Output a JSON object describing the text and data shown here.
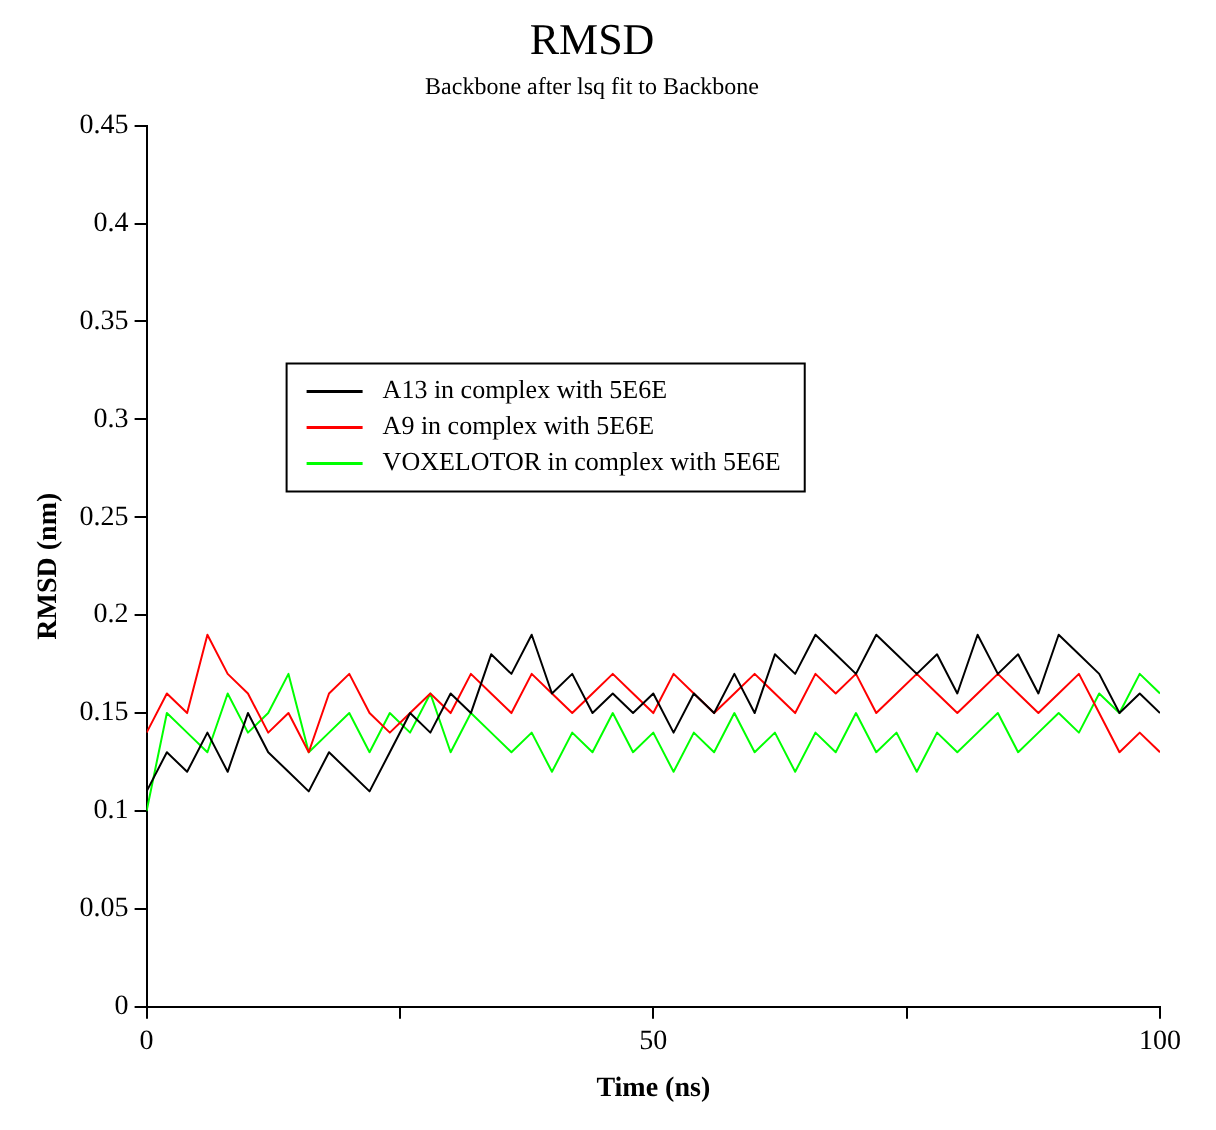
{
  "chart_data": {
    "type": "line",
    "title": "RMSD",
    "subtitle": "Backbone after lsq fit to Backbone",
    "xlabel": "Time (ns)",
    "ylabel": "RMSD (nm)",
    "x": [
      0,
      2,
      4,
      6,
      8,
      10,
      12,
      14,
      16,
      18,
      20,
      22,
      24,
      26,
      28,
      30,
      32,
      34,
      36,
      38,
      40,
      42,
      44,
      46,
      48,
      50,
      52,
      54,
      56,
      58,
      60,
      62,
      64,
      66,
      68,
      70,
      72,
      74,
      76,
      78,
      80,
      82,
      84,
      86,
      88,
      90,
      92,
      94,
      96,
      98,
      100
    ],
    "series": [
      {
        "name": "A13 in complex with 5E6E",
        "color": "#000000",
        "values": [
          0.11,
          0.13,
          0.12,
          0.14,
          0.12,
          0.15,
          0.13,
          0.12,
          0.11,
          0.13,
          0.12,
          0.11,
          0.13,
          0.15,
          0.14,
          0.16,
          0.15,
          0.18,
          0.17,
          0.19,
          0.16,
          0.17,
          0.15,
          0.16,
          0.15,
          0.16,
          0.14,
          0.16,
          0.15,
          0.17,
          0.15,
          0.18,
          0.17,
          0.19,
          0.18,
          0.17,
          0.19,
          0.18,
          0.17,
          0.18,
          0.16,
          0.19,
          0.17,
          0.18,
          0.16,
          0.19,
          0.18,
          0.17,
          0.15,
          0.16,
          0.15
        ]
      },
      {
        "name": "A9 in complex with 5E6E",
        "color": "#ff0000",
        "values": [
          0.14,
          0.16,
          0.15,
          0.19,
          0.17,
          0.16,
          0.14,
          0.15,
          0.13,
          0.16,
          0.17,
          0.15,
          0.14,
          0.15,
          0.16,
          0.15,
          0.17,
          0.16,
          0.15,
          0.17,
          0.16,
          0.15,
          0.16,
          0.17,
          0.16,
          0.15,
          0.17,
          0.16,
          0.15,
          0.16,
          0.17,
          0.16,
          0.15,
          0.17,
          0.16,
          0.17,
          0.15,
          0.16,
          0.17,
          0.16,
          0.15,
          0.16,
          0.17,
          0.16,
          0.15,
          0.16,
          0.17,
          0.15,
          0.13,
          0.14,
          0.13
        ]
      },
      {
        "name": "VOXELOTOR in complex with 5E6E",
        "color": "#00ff00",
        "values": [
          0.1,
          0.15,
          0.14,
          0.13,
          0.16,
          0.14,
          0.15,
          0.17,
          0.13,
          0.14,
          0.15,
          0.13,
          0.15,
          0.14,
          0.16,
          0.13,
          0.15,
          0.14,
          0.13,
          0.14,
          0.12,
          0.14,
          0.13,
          0.15,
          0.13,
          0.14,
          0.12,
          0.14,
          0.13,
          0.15,
          0.13,
          0.14,
          0.12,
          0.14,
          0.13,
          0.15,
          0.13,
          0.14,
          0.12,
          0.14,
          0.13,
          0.14,
          0.15,
          0.13,
          0.14,
          0.15,
          0.14,
          0.16,
          0.15,
          0.17,
          0.16
        ]
      }
    ],
    "xlim": [
      0,
      100
    ],
    "xticks": [
      0,
      {
        "value": 25,
        "label": null
      },
      50,
      {
        "value": 75,
        "label": null
      },
      100
    ],
    "ylim": [
      0,
      0.45
    ],
    "yticks": [
      0,
      0.05,
      0.1,
      0.15,
      0.2,
      0.25,
      0.3,
      0.35,
      0.4,
      0.45
    ],
    "grid": false,
    "legend": "left",
    "marker": "none",
    "line_style": "solid"
  }
}
